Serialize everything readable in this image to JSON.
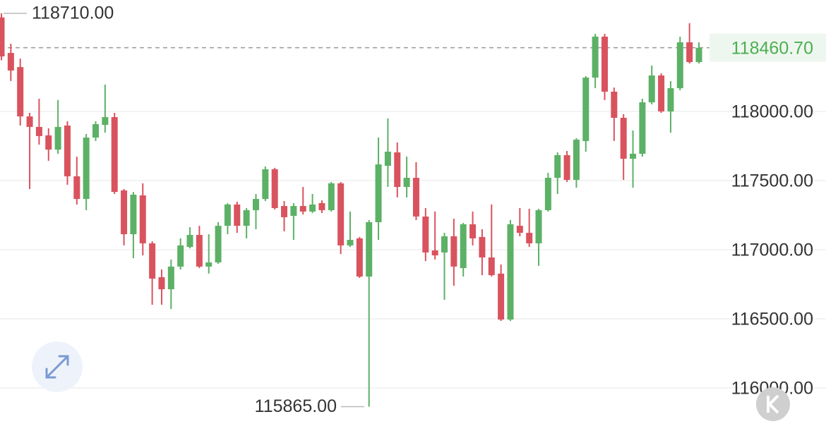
{
  "chart_data": {
    "type": "candlestick",
    "open": [
      118680,
      118423,
      118321,
      117964,
      117888,
      117827,
      117724,
      117898,
      117531,
      117367,
      117811,
      117903,
      117959,
      117429,
      117112,
      117393,
      117046,
      116801,
      116714,
      116878,
      117020,
      117107,
      116878,
      116908,
      117173,
      117327,
      117173,
      117286,
      117367,
      117582,
      117316,
      117245,
      117316,
      117276,
      117337,
      117286,
      117480,
      117031,
      117082,
      116806,
      117199,
      117607,
      117704,
      117454,
      117520,
      117240,
      116995,
      116980,
      117097,
      116867,
      117184,
      117092,
      116944,
      116827,
      116495,
      117173,
      117122,
      117046,
      117286,
      117520,
      117684,
      117505,
      117786,
      118245,
      118541,
      118143,
      117954,
      117658,
      117694,
      118066,
      118260,
      118000,
      118168,
      118500,
      118357
    ],
    "high": [
      118710,
      118490,
      118382,
      117990,
      118092,
      117878,
      118082,
      117929,
      117673,
      117837,
      117929,
      118194,
      117990,
      117439,
      117418,
      117480,
      117061,
      116857,
      116929,
      117082,
      117163,
      117173,
      117112,
      117199,
      117337,
      117347,
      117301,
      117403,
      117602,
      117592,
      117352,
      117337,
      117454,
      117403,
      117357,
      117490,
      117490,
      117276,
      117092,
      117214,
      117811,
      117949,
      117776,
      117673,
      117633,
      117301,
      117276,
      117122,
      117224,
      117194,
      117276,
      117148,
      117327,
      116893,
      117214,
      117301,
      117296,
      117296,
      117556,
      117704,
      117714,
      117806,
      118255,
      118561,
      118561,
      118173,
      117980,
      117862,
      118092,
      118332,
      118276,
      118219,
      118541,
      118638,
      118500
    ],
    "low": [
      118370,
      118220,
      117898,
      117439,
      117760,
      117643,
      117694,
      117470,
      117327,
      117286,
      117786,
      117847,
      117403,
      117031,
      116939,
      116959,
      116602,
      116602,
      116571,
      116857,
      117010,
      116867,
      116827,
      116898,
      117112,
      117122,
      117082,
      117148,
      117352,
      117291,
      117133,
      117071,
      117255,
      117265,
      117265,
      117276,
      116969,
      117020,
      116796,
      115865,
      117071,
      117454,
      117378,
      117378,
      117214,
      116918,
      116929,
      116638,
      116740,
      116806,
      117031,
      116816,
      116806,
      116485,
      116485,
      117097,
      117020,
      116883,
      117276,
      117403,
      117490,
      117449,
      117709,
      118168,
      118082,
      117786,
      117505,
      117449,
      117673,
      118051,
      117990,
      117847,
      118153,
      118347,
      118347
    ],
    "close": [
      118398,
      118296,
      117964,
      117888,
      117822,
      117724,
      117888,
      117531,
      117367,
      117811,
      117908,
      117959,
      117418,
      117112,
      117398,
      117046,
      116791,
      116714,
      116878,
      117031,
      117107,
      116878,
      116908,
      117173,
      117327,
      117173,
      117286,
      117367,
      117582,
      117301,
      117235,
      117316,
      117276,
      117327,
      117286,
      117480,
      117031,
      117071,
      116806,
      117199,
      117617,
      117709,
      117454,
      117520,
      117240,
      116980,
      116959,
      117097,
      116878,
      117184,
      117082,
      116944,
      116816,
      116495,
      117184,
      117122,
      117046,
      117286,
      117520,
      117684,
      117505,
      117796,
      118245,
      118541,
      118143,
      117954,
      117658,
      117694,
      118066,
      118260,
      118000,
      118168,
      118500,
      118357,
      118460.7
    ],
    "up_color": "#5cb166",
    "down_color": "#d9535e",
    "ylim": [
      115745,
      118806
    ],
    "yticks": [
      {
        "value": 118000,
        "label": "118000.00"
      },
      {
        "value": 117500,
        "label": "117500.00"
      },
      {
        "value": 117000,
        "label": "117000.00"
      },
      {
        "value": 116500,
        "label": "116500.00"
      },
      {
        "value": 116000,
        "label": "116000.00"
      }
    ],
    "grid": true,
    "last_price": {
      "value": 118460.7,
      "label": "118460.70",
      "color": "#4caf50"
    },
    "annotations": [
      {
        "value": 118710,
        "label": "118710.00"
      },
      {
        "value": 115865,
        "label": "115865.00"
      }
    ]
  }
}
